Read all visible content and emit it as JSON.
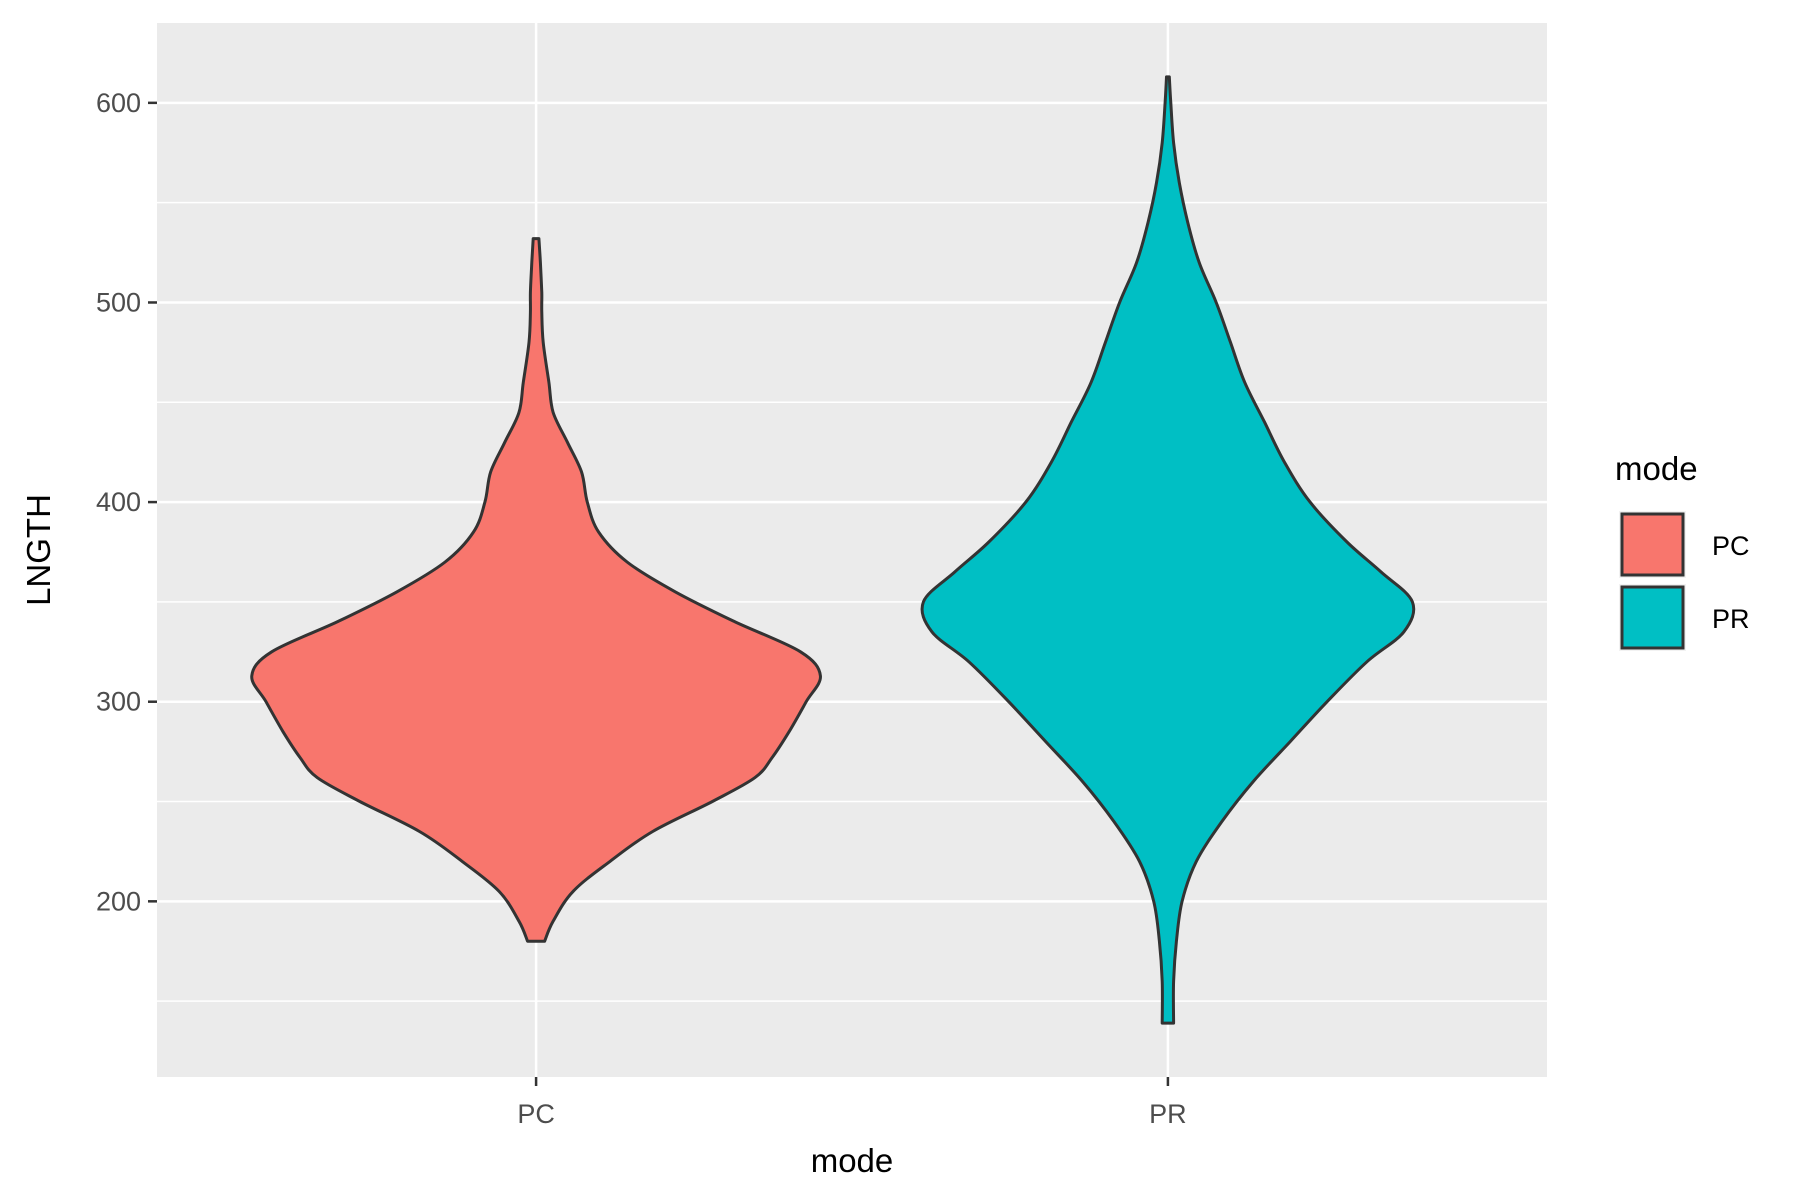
{
  "chart_data": {
    "type": "violin",
    "title": "",
    "xlabel": "mode",
    "ylabel": "LNGTH",
    "categories": [
      "PC",
      "PR"
    ],
    "ylim": [
      112,
      640
    ],
    "yticks": [
      200,
      300,
      400,
      500,
      600
    ],
    "grid": true,
    "legend": {
      "title": "mode",
      "position": "right",
      "entries": [
        {
          "label": "PC",
          "color": "#F8766D"
        },
        {
          "label": "PR",
          "color": "#00BFC4"
        }
      ]
    },
    "series": [
      {
        "name": "PC",
        "color": "#F8766D",
        "min": 180,
        "max": 532,
        "half_width_profile": [
          [
            180,
            0.03
          ],
          [
            190,
            0.06
          ],
          [
            205,
            0.13
          ],
          [
            220,
            0.26
          ],
          [
            235,
            0.41
          ],
          [
            250,
            0.62
          ],
          [
            262,
            0.77
          ],
          [
            272,
            0.83
          ],
          [
            285,
            0.89
          ],
          [
            300,
            0.95
          ],
          [
            313,
            1.0
          ],
          [
            325,
            0.93
          ],
          [
            340,
            0.7
          ],
          [
            355,
            0.49
          ],
          [
            370,
            0.32
          ],
          [
            385,
            0.22
          ],
          [
            400,
            0.18
          ],
          [
            415,
            0.16
          ],
          [
            430,
            0.11
          ],
          [
            445,
            0.06
          ],
          [
            460,
            0.045
          ],
          [
            480,
            0.025
          ],
          [
            495,
            0.02
          ],
          [
            505,
            0.02
          ],
          [
            520,
            0.015
          ],
          [
            532,
            0.01
          ]
        ]
      },
      {
        "name": "PR",
        "color": "#00BFC4",
        "min": 139,
        "max": 613,
        "half_width_profile": [
          [
            139,
            0.02
          ],
          [
            160,
            0.02
          ],
          [
            180,
            0.03
          ],
          [
            200,
            0.05
          ],
          [
            220,
            0.1
          ],
          [
            240,
            0.19
          ],
          [
            260,
            0.3
          ],
          [
            280,
            0.43
          ],
          [
            300,
            0.56
          ],
          [
            320,
            0.7
          ],
          [
            335,
            0.83
          ],
          [
            350,
            0.86
          ],
          [
            365,
            0.75
          ],
          [
            380,
            0.63
          ],
          [
            400,
            0.5
          ],
          [
            420,
            0.41
          ],
          [
            440,
            0.34
          ],
          [
            460,
            0.27
          ],
          [
            480,
            0.22
          ],
          [
            500,
            0.17
          ],
          [
            520,
            0.11
          ],
          [
            540,
            0.07
          ],
          [
            560,
            0.04
          ],
          [
            580,
            0.02
          ],
          [
            600,
            0.01
          ],
          [
            613,
            0.005
          ]
        ]
      }
    ]
  }
}
